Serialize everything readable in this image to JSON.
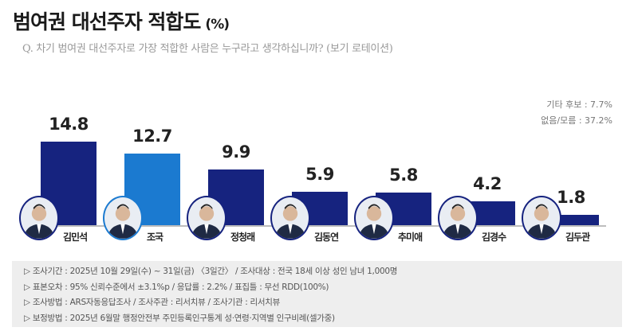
{
  "title": "범여권 대선주자 적합도",
  "title_unit": "(%)",
  "question": "Q. 차기 범여권 대선주자로 가장 적합한 사람은 누구라고 생각하십니까? (보기 로테이션)",
  "notes": [
    "기타 후보 : 7.7%",
    "없음/모름 : 37.2%"
  ],
  "colors": {
    "primary": "#16237f",
    "highlight": "#1b7ad0",
    "info_bg": "#eeeeee"
  },
  "chart_data": {
    "type": "bar",
    "title": "범여권 대선주자 적합도 (%)",
    "categories": [
      "김민석",
      "조국",
      "정청래",
      "김동연",
      "추미애",
      "김경수",
      "김두관"
    ],
    "values": [
      14.8,
      12.7,
      9.9,
      5.9,
      5.8,
      4.2,
      1.8
    ],
    "value_labels": [
      "14.8",
      "12.7",
      "9.9",
      "5.9",
      "5.8",
      "4.2",
      "1.8"
    ],
    "bar_colors": [
      "#16237f",
      "#1b7ad0",
      "#16237f",
      "#16237f",
      "#16237f",
      "#16237f",
      "#16237f"
    ],
    "ylim": [
      0,
      15
    ],
    "grid": false,
    "xlabel": "",
    "ylabel": ""
  },
  "info": [
    "▷ 조사기간 : 2025년 10월 29일(수) ~ 31일(금) 〈3일간〉 / 조사대상 : 전국 18세 이상 성인 남녀 1,000명",
    "▷ 표본오차 : 95% 신뢰수준에서 ±3.1%p / 응답률 : 2.2% / 표집틀 : 무선 RDD(100%)",
    "▷ 조사방법 : ARS자동응답조사 / 조사주관 : 리서치뷰 / 조사기관 : 리서치뷰",
    "▷ 보정방법 : 2025년 6월말 행정안전부 주민등록인구통계 성·연령·지역별 인구비례(셀가중)"
  ]
}
